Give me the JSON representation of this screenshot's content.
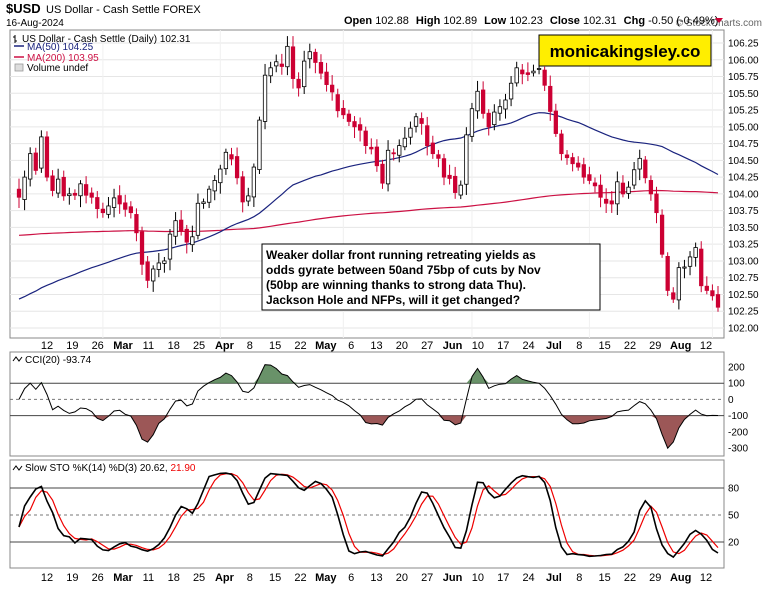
{
  "header": {
    "symbol": "$USD",
    "name": "US Dollar - Cash Settle",
    "exchange": "FOREX",
    "date": "16-Aug-2024",
    "open_label": "Open",
    "open": "102.88",
    "high_label": "High",
    "high": "102.89",
    "low_label": "Low",
    "low": "102.23",
    "close_label": "Close",
    "close": "102.31",
    "chg_label": "Chg",
    "chg": "-0.50 (-0.49%)",
    "copyright": "© StockCharts.com"
  },
  "colors": {
    "up": "#000000",
    "down": "#cc0033",
    "ma50": "#1a237e",
    "ma200": "#cc1144",
    "cci_fill_pos": "#4f7f4f",
    "cci_fill_neg": "#8b3a3a",
    "sto_d": "#ee0000",
    "sto_k": "#000000",
    "watermark_bg": "#ffee00"
  },
  "watermark": "monicakingsley.co",
  "annotation": [
    "Weaker dollar front running retreating yields as",
    "odds gyrate between 50and 75bp of cuts by Nov",
    "(50bp are winning thanks to strong data Thu).",
    "Jackson Hole and NFPs, will it get changed?"
  ],
  "price_panel": {
    "legend": [
      {
        "text": "US Dollar - Cash Settle (Daily) 102.31",
        "color": "#000000"
      },
      {
        "text": "MA(50) 104.25",
        "color": "#1a237e"
      },
      {
        "text": "MA(200) 103.95",
        "color": "#cc1144"
      },
      {
        "text": "Volume undef",
        "color": "#000000"
      }
    ],
    "y_ticks": [
      "102.00",
      "102.25",
      "102.50",
      "102.75",
      "103.00",
      "103.25",
      "103.50",
      "103.75",
      "104.00",
      "104.25",
      "104.50",
      "104.75",
      "105.00",
      "105.25",
      "105.50",
      "105.75",
      "106.00",
      "106.25"
    ]
  },
  "cci_panel": {
    "label": "CCI(20) -93.74",
    "y_ticks": [
      "200",
      "100",
      "0",
      "-100",
      "-200",
      "-300"
    ]
  },
  "sto_panel": {
    "label_main": "Slow STO %K(14) %D(3) 20.62,",
    "label_d": "21.90",
    "y_ticks": [
      "80",
      "50",
      "20"
    ]
  },
  "x_axis": {
    "labels": [
      "12",
      "19",
      "26",
      "Mar",
      "11",
      "18",
      "25",
      "Apr",
      "8",
      "15",
      "22",
      "May",
      "6",
      "13",
      "20",
      "27",
      "Jun",
      "10",
      "17",
      "24",
      "Jul",
      "8",
      "15",
      "22",
      "29",
      "Aug",
      "12"
    ]
  },
  "chart_data": {
    "type": "candlestick",
    "title": "US Dollar - Cash Settle (Daily)",
    "period": "2024-02-08 to 2024-08-16",
    "y_range": [
      101.9,
      106.35
    ],
    "close": [
      103.95,
      104.25,
      104.6,
      104.35,
      104.85,
      104.25,
      104.05,
      104.22,
      103.97,
      104.0,
      103.98,
      104.15,
      103.98,
      103.95,
      103.78,
      103.72,
      103.82,
      103.94,
      103.85,
      103.77,
      103.72,
      103.42,
      102.95,
      102.71,
      102.88,
      102.97,
      103.0,
      103.4,
      103.6,
      103.45,
      103.28,
      103.36,
      103.86,
      103.88,
      104.07,
      104.2,
      104.37,
      104.62,
      104.52,
      104.24,
      103.88,
      103.97,
      104.4,
      105.1,
      105.77,
      105.88,
      105.97,
      105.9,
      106.2,
      105.72,
      105.58,
      105.98,
      106.12,
      105.96,
      105.8,
      105.63,
      105.52,
      105.24,
      105.18,
      105.08,
      105.0,
      104.95,
      104.72,
      104.67,
      104.42,
      104.16,
      104.65,
      104.6,
      104.72,
      104.83,
      104.98,
      105.15,
      105.05,
      104.72,
      104.6,
      104.53,
      104.25,
      104.23,
      104.02,
      104.13,
      104.88,
      105.27,
      105.53,
      105.2,
      105.0,
      105.22,
      105.3,
      105.4,
      105.65,
      105.88,
      105.79,
      105.78,
      105.83,
      105.87,
      105.62,
      105.23,
      104.9,
      104.6,
      104.54,
      104.45,
      104.4,
      104.25,
      104.2,
      104.12,
      103.95,
      103.86,
      103.85,
      104.18,
      104.0,
      104.1,
      104.36,
      104.53,
      104.24,
      104.0,
      103.72,
      103.1,
      102.56,
      102.43,
      102.9,
      102.91,
      103.06,
      103.2,
      102.63,
      102.56,
      102.48,
      102.31
    ]
  }
}
